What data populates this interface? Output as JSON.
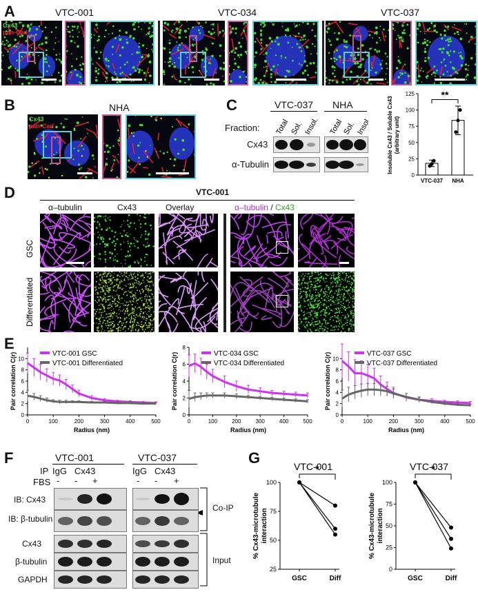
{
  "panels": {
    "A": "A",
    "B": "B",
    "C": "C",
    "D": "D",
    "E": "E",
    "F": "F",
    "G": "G"
  },
  "panel_a": {
    "samples": [
      "VTC-001",
      "VTC-034",
      "VTC-037"
    ],
    "legend_cx43": "Cx43",
    "legend_pancad": "pan-Cad"
  },
  "panel_b": {
    "sample": "NHA",
    "legend_cx43": "Cx43",
    "legend_pancad": "pan-Cad"
  },
  "panel_c": {
    "groups": [
      "VTC-037",
      "NHA"
    ],
    "fraction_label": "Fraction:",
    "lanes": [
      "Total",
      "Sol.",
      "Insol.",
      "Total",
      "Sol.",
      "Insol."
    ],
    "rows": [
      "Cx43",
      "α-Tubulin"
    ],
    "bar_chart": {
      "ylabel": "Insoluble Cx43 / Soluble Cx43",
      "ylabel2": "(arbitrary unit)",
      "significance": "**"
    }
  },
  "panel_d": {
    "title": "VTC-001",
    "col_headers": [
      "α–tubulin",
      "Cx43",
      "Overlay"
    ],
    "overlay_header_a": "α–tubulin",
    "overlay_header_sep": " / ",
    "overlay_header_b": "Cx43",
    "row_labels": [
      "GSC",
      "Differentiated"
    ]
  },
  "panel_e": {
    "ylabel": "Pair correlation C(r)",
    "xlabel": "Radius (nm)"
  },
  "panel_f": {
    "groups": [
      "VTC-001",
      "VTC-037"
    ],
    "ip_label": "IP",
    "fbs_label": "FBS",
    "ip_lanes": [
      "IgG",
      "Cx43"
    ],
    "fbs_signs": [
      "-",
      "-",
      "+",
      "-",
      "-",
      "+"
    ],
    "rows": [
      "IB: Cx43",
      "IB: β-tubulin",
      "Cx43",
      "β-tubulin",
      "GAPDH"
    ],
    "coip_label": "Co-IP",
    "input_label": "Input"
  },
  "panel_g": {
    "ylabel": "% Cx43-microtubule",
    "ylabel2": "interaction",
    "significance": "*"
  },
  "colors": {
    "magenta": "#cc33ee",
    "gray": "#666666",
    "cyan": "#5fd0d8",
    "pink": "#c4579a",
    "green": "#44dd33",
    "red": "#ee2233"
  },
  "chart_data": [
    {
      "type": "bar",
      "categories": [
        "VTC-037",
        "NHA"
      ],
      "values": [
        18,
        84
      ],
      "errors": [
        5,
        22
      ],
      "points": [
        [
          14,
          17,
          22
        ],
        [
          66,
          84,
          100
        ]
      ],
      "ylabel": "Insoluble Cx43 / Soluble Cx43 (arbitrary unit)",
      "ylim": [
        0,
        125
      ],
      "yticks": [
        0,
        25,
        50,
        75,
        100,
        125
      ],
      "significance": "**"
    },
    {
      "type": "line",
      "xlabel": "Radius (nm)",
      "ylabel": "Pair correlation C(r)",
      "xlim": [
        0,
        500
      ],
      "ylim": [
        0,
        12
      ],
      "xticks": [
        0,
        100,
        200,
        300,
        400,
        500
      ],
      "yticks": [
        0,
        2,
        4,
        6,
        8,
        10
      ],
      "series": [
        {
          "name": "VTC-001 GSC",
          "x": [
            0,
            25,
            50,
            75,
            100,
            125,
            150,
            175,
            200,
            250,
            300,
            350,
            400,
            450,
            500
          ],
          "y": [
            9.2,
            8.4,
            7.6,
            7.0,
            6.4,
            6.1,
            5.4,
            4.6,
            3.8,
            3.0,
            2.6,
            2.4,
            2.3,
            2.2,
            2.1
          ],
          "err": [
            1.8,
            1.6,
            1.4,
            1.2,
            1.1,
            1.0,
            0.9,
            0.7,
            0.6,
            0.4,
            0.3,
            0.2,
            0.2,
            0.2,
            0.2
          ]
        },
        {
          "name": "VTC-001 Differentiated",
          "x": [
            0,
            25,
            50,
            75,
            100,
            125,
            150,
            175,
            200,
            250,
            300,
            350,
            400,
            450,
            500
          ],
          "y": [
            3.4,
            3.2,
            2.9,
            2.6,
            2.4,
            2.3,
            2.3,
            2.3,
            2.3,
            2.2,
            2.2,
            2.1,
            2.1,
            2.0,
            2.0
          ],
          "err": [
            0.9,
            0.6,
            0.5,
            0.4,
            0.3,
            0.3,
            0.3,
            0.2,
            0.2,
            0.2,
            0.2,
            0.2,
            0.2,
            0.2,
            0.2
          ]
        }
      ]
    },
    {
      "type": "line",
      "xlabel": "Radius (nm)",
      "ylabel": "Pair correlation C(r)",
      "xlim": [
        0,
        500
      ],
      "ylim": [
        0,
        8
      ],
      "xticks": [
        0,
        100,
        200,
        300,
        400,
        500
      ],
      "yticks": [
        0,
        2,
        4,
        6,
        8
      ],
      "series": [
        {
          "name": "VTC-034 GSC",
          "x": [
            0,
            25,
            50,
            75,
            100,
            150,
            200,
            250,
            300,
            350,
            400,
            450,
            500
          ],
          "y": [
            5.8,
            6.1,
            5.7,
            5.1,
            4.6,
            3.9,
            3.4,
            3.0,
            2.8,
            2.6,
            2.5,
            2.4,
            2.3
          ],
          "err": [
            1.3,
            1.1,
            1.0,
            0.9,
            0.8,
            0.7,
            0.6,
            0.5,
            0.4,
            0.3,
            0.3,
            0.3,
            0.3
          ]
        },
        {
          "name": "VTC-034 Differentiated",
          "x": [
            0,
            25,
            50,
            75,
            100,
            150,
            200,
            250,
            300,
            350,
            400,
            450,
            500
          ],
          "y": [
            1.9,
            2.1,
            2.2,
            2.3,
            2.3,
            2.3,
            2.2,
            2.1,
            2.0,
            1.9,
            1.8,
            1.7,
            1.6
          ],
          "err": [
            1.0,
            0.5,
            0.4,
            0.3,
            0.3,
            0.3,
            0.3,
            0.2,
            0.2,
            0.2,
            0.2,
            0.2,
            0.2
          ]
        }
      ]
    },
    {
      "type": "line",
      "xlabel": "Radius (nm)",
      "ylabel": "Pair correlation C(r)",
      "xlim": [
        0,
        500
      ],
      "ylim": [
        0,
        12
      ],
      "xticks": [
        0,
        100,
        200,
        300,
        400,
        500
      ],
      "yticks": [
        0,
        2,
        4,
        6,
        8,
        10
      ],
      "series": [
        {
          "name": "VTC-037 GSC",
          "x": [
            0,
            25,
            50,
            75,
            100,
            125,
            150,
            175,
            200,
            250,
            300,
            350,
            400,
            450,
            500
          ],
          "y": [
            9.6,
            8.6,
            7.4,
            7.4,
            7.0,
            6.5,
            5.4,
            4.6,
            3.9,
            3.1,
            2.7,
            2.5,
            2.3,
            2.2,
            2.1
          ],
          "err": [
            3.0,
            2.6,
            2.4,
            2.2,
            2.0,
            1.8,
            1.5,
            1.2,
            1.0,
            0.7,
            0.5,
            0.4,
            0.3,
            0.3,
            0.3
          ]
        },
        {
          "name": "VTC-037 Differentiated",
          "x": [
            0,
            25,
            50,
            75,
            100,
            125,
            150,
            175,
            200,
            250,
            300,
            350,
            400,
            450,
            500
          ],
          "y": [
            2.9,
            3.6,
            4.0,
            4.3,
            4.5,
            4.5,
            4.4,
            4.2,
            3.8,
            3.2,
            2.7,
            2.3,
            2.0,
            1.8,
            1.7
          ],
          "err": [
            1.5,
            1.3,
            1.2,
            1.2,
            1.1,
            1.1,
            1.0,
            0.9,
            0.8,
            0.6,
            0.4,
            0.3,
            0.3,
            0.2,
            0.2
          ]
        }
      ]
    },
    {
      "type": "line",
      "title": "VTC-001",
      "categories": [
        "GSC",
        "Diff"
      ],
      "series": [
        {
          "values": [
            100,
            80
          ]
        },
        {
          "values": [
            100,
            60
          ]
        },
        {
          "values": [
            100,
            55
          ]
        }
      ],
      "ylabel": "% Cx43-microtubule interaction",
      "ylim": [
        25,
        100
      ],
      "yticks": [
        25,
        50,
        75,
        100
      ],
      "significance": "*"
    },
    {
      "type": "line",
      "title": "VTC-037",
      "categories": [
        "GSC",
        "Diff"
      ],
      "series": [
        {
          "values": [
            100,
            48
          ]
        },
        {
          "values": [
            100,
            35
          ]
        },
        {
          "values": [
            100,
            24
          ]
        }
      ],
      "ylabel": "% Cx43-microtubule interaction",
      "ylim": [
        0,
        100
      ],
      "yticks": [
        0,
        25,
        50,
        75,
        100
      ],
      "significance": "*"
    }
  ]
}
